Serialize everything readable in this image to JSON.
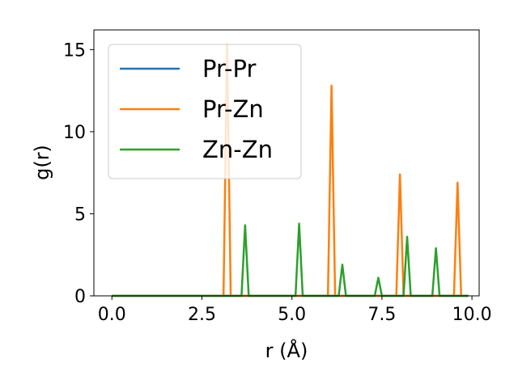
{
  "chart_data": {
    "type": "line",
    "xlabel": "r (Å)",
    "ylabel": "g(r)",
    "xlim": [
      -0.5,
      10.2
    ],
    "ylim": [
      0,
      16.2
    ],
    "xticks": [
      0.0,
      2.5,
      5.0,
      7.5,
      10.0
    ],
    "xtick_labels": [
      "0.0",
      "2.5",
      "5.0",
      "7.5",
      "10.0"
    ],
    "yticks": [
      0,
      5,
      10,
      15
    ],
    "ytick_labels": [
      "0",
      "5",
      "10",
      "15"
    ],
    "grid": false,
    "legend_position": "upper-left",
    "series": [
      {
        "name": "Pr-Pr",
        "color": "#1f77b4",
        "x": [
          0.0,
          9.9
        ],
        "y": [
          0,
          0
        ]
      },
      {
        "name": "Pr-Zn",
        "color": "#ff7f0e",
        "x": [
          0.0,
          3.1,
          3.2,
          3.3,
          6.0,
          6.1,
          6.2,
          7.9,
          8.0,
          8.1,
          9.5,
          9.6,
          9.7,
          9.9
        ],
        "y": [
          0,
          0,
          15.3,
          0,
          0,
          12.8,
          0,
          0,
          7.4,
          0,
          0,
          6.9,
          0,
          0
        ]
      },
      {
        "name": "Zn-Zn",
        "color": "#2ca02c",
        "x": [
          0.0,
          3.6,
          3.7,
          3.8,
          5.1,
          5.2,
          5.3,
          6.3,
          6.4,
          6.5,
          7.3,
          7.4,
          7.5,
          8.1,
          8.2,
          8.3,
          8.9,
          9.0,
          9.1,
          9.9
        ],
        "y": [
          0,
          0,
          4.3,
          0,
          0,
          4.4,
          0,
          0,
          1.9,
          0,
          0,
          1.1,
          0,
          0,
          3.6,
          0,
          0,
          2.9,
          0,
          0
        ]
      }
    ]
  }
}
